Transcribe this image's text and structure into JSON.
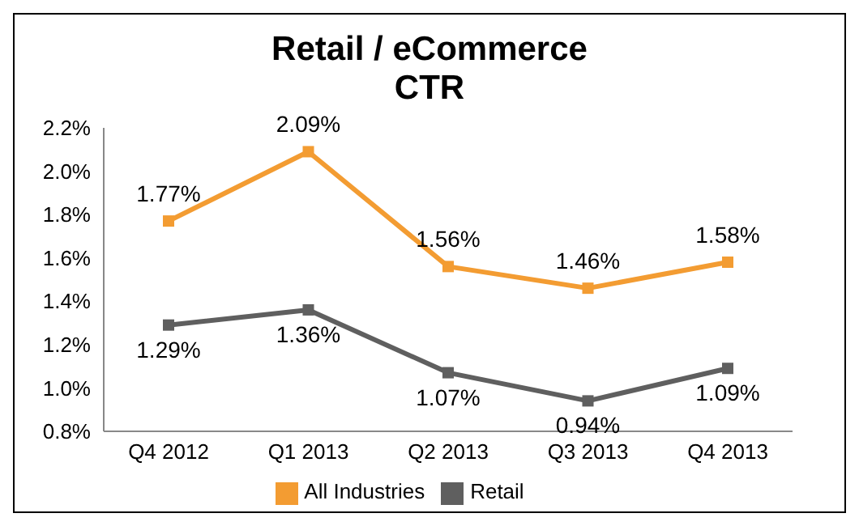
{
  "chart_data": {
    "type": "line",
    "title": "Retail / eCommerce",
    "subtitle": "CTR",
    "categories": [
      "Q4 2012",
      "Q1 2013",
      "Q2 2013",
      "Q3 2013",
      "Q4 2013"
    ],
    "series": [
      {
        "name": "All Industries",
        "color": "#f39c32",
        "values": [
          1.77,
          2.09,
          1.56,
          1.46,
          1.58
        ],
        "value_labels": [
          "1.77%",
          "2.09%",
          "1.56%",
          "1.46%",
          "1.58%"
        ]
      },
      {
        "name": "Retail",
        "color": "#5f5f5f",
        "values": [
          1.29,
          1.36,
          1.07,
          0.94,
          1.09
        ],
        "value_labels": [
          "1.29%",
          "1.36%",
          "1.07%",
          "0.94%",
          "1.09%"
        ]
      }
    ],
    "ylim": [
      0.8,
      2.2
    ],
    "yticks": [
      {
        "value": 0.8,
        "label": "0.8%"
      },
      {
        "value": 1.0,
        "label": "1.0%"
      },
      {
        "value": 1.2,
        "label": "1.2%"
      },
      {
        "value": 1.4,
        "label": "1.4%"
      },
      {
        "value": 1.6,
        "label": "1.6%"
      },
      {
        "value": 1.8,
        "label": "1.8%"
      },
      {
        "value": 2.0,
        "label": "2.0%"
      },
      {
        "value": 2.2,
        "label": "2.2%"
      }
    ],
    "grid": false,
    "legend": "bottom",
    "marker": "square",
    "line_style": "solid"
  }
}
